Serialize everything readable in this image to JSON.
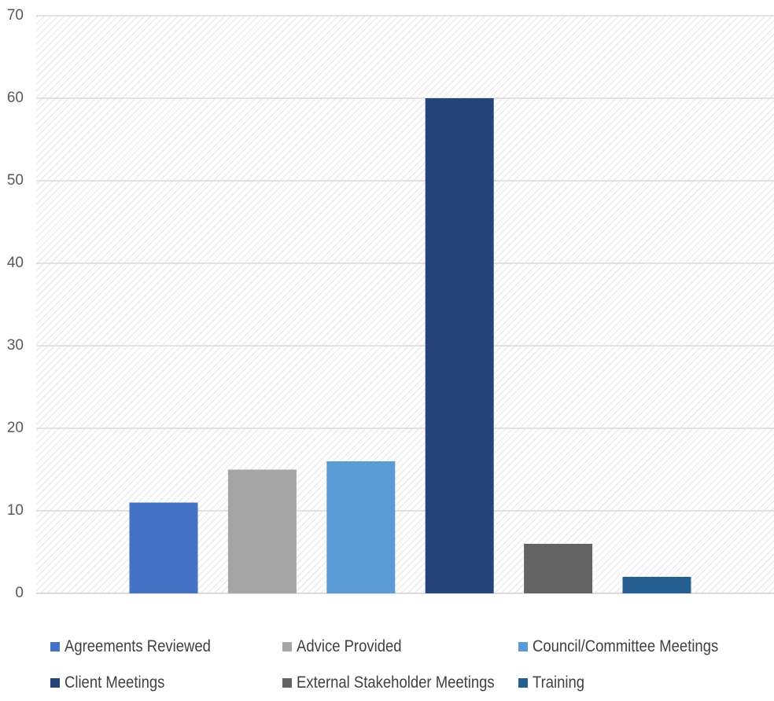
{
  "chart_data": {
    "type": "bar",
    "categories": [
      "Agreements Reviewed",
      "Advice Provided",
      "Council/Committee Meetings",
      "Client Meetings",
      "External Stakeholder Meetings",
      "Training"
    ],
    "values": [
      11,
      15,
      16,
      60,
      6,
      2
    ],
    "colors": [
      "#4472c4",
      "#a5a5a5",
      "#5b9bd5",
      "#264478",
      "#636363",
      "#255e91"
    ],
    "yticks": [
      0,
      10,
      20,
      30,
      40,
      50,
      60,
      70
    ],
    "ylim": [
      0,
      70
    ],
    "grid": true,
    "legend_position": "bottom",
    "title": "",
    "xlabel": "",
    "ylabel": ""
  }
}
